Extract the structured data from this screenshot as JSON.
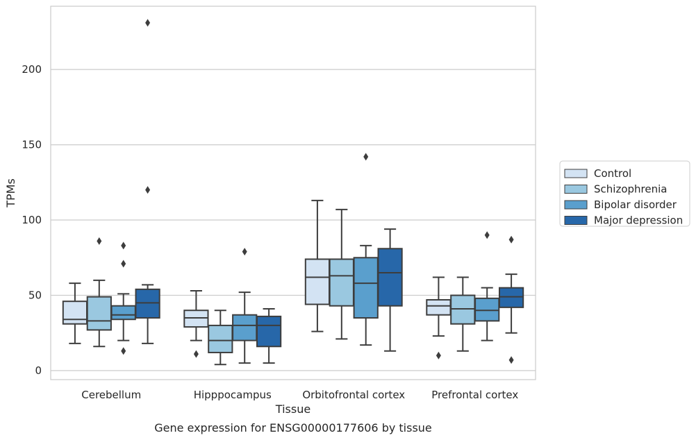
{
  "chart_data": {
    "type": "box",
    "title": "",
    "caption": "Gene expression for ENSG00000177606 by tissue",
    "xlabel": "Tissue",
    "ylabel": "TPMs",
    "ylim": [
      -6,
      242
    ],
    "yticks": [
      0,
      50,
      100,
      150,
      200
    ],
    "grid": "horizontal",
    "legend_position": "right",
    "categories": [
      "Cerebellum",
      "Hipppocampus",
      "Orbitofrontal cortex",
      "Prefrontal cortex"
    ],
    "series": [
      {
        "name": "Control",
        "color": "#d3e3f3",
        "boxes": [
          {
            "whisker_low": 18,
            "q1": 31,
            "median": 34,
            "q3": 46,
            "whisker_high": 58,
            "outliers": []
          },
          {
            "whisker_low": 20,
            "q1": 29,
            "median": 35,
            "q3": 40,
            "whisker_high": 53,
            "outliers": [
              11
            ]
          },
          {
            "whisker_low": 26,
            "q1": 44,
            "median": 62,
            "q3": 74,
            "whisker_high": 113,
            "outliers": []
          },
          {
            "whisker_low": 23,
            "q1": 37,
            "median": 43,
            "q3": 47,
            "whisker_high": 62,
            "outliers": [
              10
            ]
          }
        ]
      },
      {
        "name": "Schizophrenia",
        "color": "#9ac8e0",
        "boxes": [
          {
            "whisker_low": 16,
            "q1": 27,
            "median": 33,
            "q3": 49,
            "whisker_high": 60,
            "outliers": [
              86
            ]
          },
          {
            "whisker_low": 4,
            "q1": 12,
            "median": 20,
            "q3": 30,
            "whisker_high": 40,
            "outliers": []
          },
          {
            "whisker_low": 21,
            "q1": 43,
            "median": 63,
            "q3": 74,
            "whisker_high": 107,
            "outliers": []
          },
          {
            "whisker_low": 13,
            "q1": 31,
            "median": 41,
            "q3": 50,
            "whisker_high": 62,
            "outliers": []
          }
        ]
      },
      {
        "name": "Bipolar disorder",
        "color": "#5a9fcd",
        "boxes": [
          {
            "whisker_low": 20,
            "q1": 34,
            "median": 37,
            "q3": 43,
            "whisker_high": 51,
            "outliers": [
              13,
              71,
              83
            ]
          },
          {
            "whisker_low": 5,
            "q1": 20,
            "median": 30,
            "q3": 37,
            "whisker_high": 52,
            "outliers": [
              79
            ]
          },
          {
            "whisker_low": 17,
            "q1": 35,
            "median": 58,
            "q3": 75,
            "whisker_high": 83,
            "outliers": [
              142
            ]
          },
          {
            "whisker_low": 20,
            "q1": 33,
            "median": 40,
            "q3": 48,
            "whisker_high": 55,
            "outliers": [
              90
            ]
          }
        ]
      },
      {
        "name": "Major depression",
        "color": "#2767a9",
        "boxes": [
          {
            "whisker_low": 18,
            "q1": 35,
            "median": 45,
            "q3": 54,
            "whisker_high": 57,
            "outliers": [
              120,
              231
            ]
          },
          {
            "whisker_low": 5,
            "q1": 16,
            "median": 30,
            "q3": 36,
            "whisker_high": 41,
            "outliers": []
          },
          {
            "whisker_low": 13,
            "q1": 43,
            "median": 65,
            "q3": 81,
            "whisker_high": 94,
            "outliers": []
          },
          {
            "whisker_low": 25,
            "q1": 42,
            "median": 49,
            "q3": 55,
            "whisker_high": 64,
            "outliers": [
              7,
              87
            ]
          }
        ]
      }
    ]
  }
}
